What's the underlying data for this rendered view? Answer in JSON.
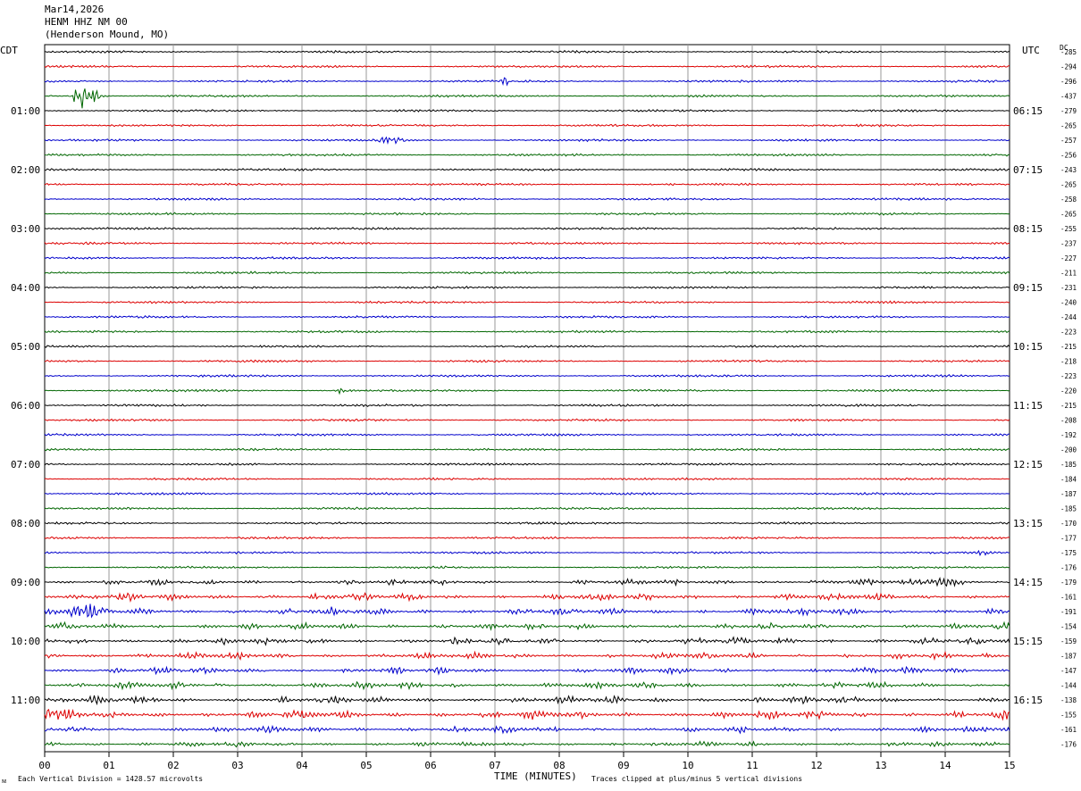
{
  "header": {
    "date": "Mar14,2026",
    "station": "HENM HHZ NM 00",
    "location": "(Henderson Mound, MO)"
  },
  "axes": {
    "left_tz": "CDT",
    "right_tz": "UTC",
    "dc_label": "DC",
    "xlabel": "TIME (MINUTES)"
  },
  "footer": {
    "division_note": "Each Vertical Division = 1428.57 microvolts",
    "clip_note": "Traces clipped at plus/minus 5 vertical divisions",
    "corner_mark": "ᴍ"
  },
  "chart_data": {
    "type": "line",
    "x_ticks": [
      "00",
      "01",
      "02",
      "03",
      "04",
      "05",
      "06",
      "07",
      "08",
      "09",
      "10",
      "11",
      "12",
      "13",
      "14",
      "15"
    ],
    "xlim": [
      0,
      15
    ],
    "grid": true,
    "trace_colors": [
      "#000000",
      "#dd0000",
      "#0000cc",
      "#006600"
    ],
    "left_hour_labels": [
      "01:00",
      "02:00",
      "03:00",
      "04:00",
      "05:00",
      "06:00",
      "07:00",
      "08:00",
      "09:00",
      "10:00",
      "11:00"
    ],
    "right_hour_labels": [
      "06:15",
      "07:15",
      "08:15",
      "09:15",
      "10:15",
      "11:15",
      "12:15",
      "13:15",
      "14:15",
      "15:15",
      "16:15"
    ],
    "dc_offsets": [
      "-285",
      "-294",
      "-296",
      "-437",
      "-279",
      "-265",
      "-257",
      "-256",
      "-243",
      "-265",
      "-258",
      "-265",
      "-255",
      "-237",
      "-227",
      "-211",
      "-231",
      "-240",
      "-244",
      "-223",
      "-215",
      "-218",
      "-223",
      "-220",
      "-215",
      "-208",
      "-192",
      "-200",
      "-185",
      "-184",
      "-187",
      "-185",
      "-170",
      "-177",
      "-175",
      "-176",
      "-179",
      "-161",
      "-191",
      "-154",
      "-159",
      "-187",
      "-147",
      "-144",
      "-138",
      "-155",
      "-161",
      "-176"
    ],
    "trace_amplitude": [
      1,
      1,
      1,
      1,
      1,
      1,
      1,
      1,
      1,
      1,
      1,
      1,
      1,
      1,
      1,
      1,
      1,
      1,
      1,
      1,
      1,
      1,
      1,
      1,
      1,
      1,
      1,
      1,
      1,
      1,
      1,
      1,
      1,
      1,
      1,
      1,
      1.8,
      2.2,
      2.3,
      2,
      2.2,
      2,
      2,
      2,
      2.3,
      2.5,
      2,
      1.6
    ],
    "events": [
      {
        "trace": 3,
        "minute": 0.6,
        "amplitude": 16,
        "duration": 0.45
      },
      {
        "trace": 2,
        "minute": 7.15,
        "amplitude": 6,
        "duration": 0.12
      },
      {
        "trace": 6,
        "minute": 5.35,
        "amplitude": 4,
        "duration": 0.5
      },
      {
        "trace": 23,
        "minute": 4.6,
        "amplitude": 3,
        "duration": 0.25
      },
      {
        "trace": 34,
        "minute": 14.6,
        "amplitude": 3,
        "duration": 0.3
      },
      {
        "trace": 36,
        "minute": 13.9,
        "amplitude": 4,
        "duration": 0.8
      },
      {
        "trace": 38,
        "minute": 0.6,
        "amplitude": 5,
        "duration": 0.7
      },
      {
        "trace": 45,
        "minute": 0.1,
        "amplitude": 6,
        "duration": 0.5
      }
    ]
  }
}
